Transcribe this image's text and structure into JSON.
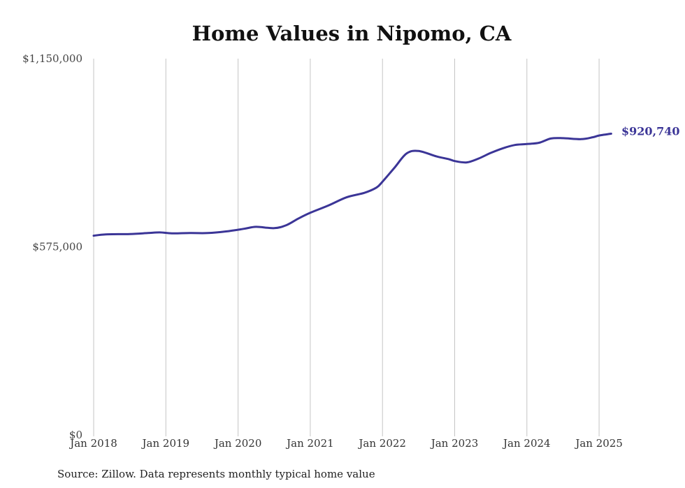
{
  "chart_data": {
    "type": "line",
    "title": "Home Values in Nipomo, CA",
    "xlabel": "",
    "ylabel": "",
    "ylim": [
      0,
      1150000
    ],
    "yticks": [
      {
        "value": 0,
        "label": "$0"
      },
      {
        "value": 575000,
        "label": "$575,000"
      },
      {
        "value": 1150000,
        "label": "$1,150,000"
      }
    ],
    "xticks": [
      {
        "value": 2018.0,
        "label": "Jan 2018"
      },
      {
        "value": 2019.0,
        "label": "Jan 2019"
      },
      {
        "value": 2020.0,
        "label": "Jan 2020"
      },
      {
        "value": 2021.0,
        "label": "Jan 2021"
      },
      {
        "value": 2022.0,
        "label": "Jan 2022"
      },
      {
        "value": 2023.0,
        "label": "Jan 2023"
      },
      {
        "value": 2024.0,
        "label": "Jan 2024"
      },
      {
        "value": 2025.0,
        "label": "Jan 2025"
      }
    ],
    "grid": "vertical",
    "series": [
      {
        "color": "#3b3597",
        "points": [
          [
            2018.0,
            609000
          ],
          [
            2018.167,
            613000
          ],
          [
            2018.5,
            614000
          ],
          [
            2018.75,
            617000
          ],
          [
            2018.917,
            619000
          ],
          [
            2019.083,
            616000
          ],
          [
            2019.333,
            617000
          ],
          [
            2019.583,
            617000
          ],
          [
            2019.833,
            622000
          ],
          [
            2020.083,
            630000
          ],
          [
            2020.25,
            636000
          ],
          [
            2020.5,
            632000
          ],
          [
            2020.667,
            641000
          ],
          [
            2020.833,
            661000
          ],
          [
            2021.0,
            679000
          ],
          [
            2021.25,
            701000
          ],
          [
            2021.5,
            726000
          ],
          [
            2021.75,
            740000
          ],
          [
            2021.917,
            756000
          ],
          [
            2022.0,
            774000
          ],
          [
            2022.167,
            817000
          ],
          [
            2022.333,
            860000
          ],
          [
            2022.5,
            868000
          ],
          [
            2022.75,
            851000
          ],
          [
            2022.917,
            843000
          ],
          [
            2023.0,
            837000
          ],
          [
            2023.167,
            833000
          ],
          [
            2023.333,
            845000
          ],
          [
            2023.5,
            862000
          ],
          [
            2023.667,
            876000
          ],
          [
            2023.833,
            886000
          ],
          [
            2024.0,
            889000
          ],
          [
            2024.167,
            893000
          ],
          [
            2024.333,
            906000
          ],
          [
            2024.5,
            907000
          ],
          [
            2024.75,
            904000
          ],
          [
            2024.917,
            910000
          ],
          [
            2025.0,
            915000
          ],
          [
            2025.167,
            920740
          ]
        ]
      }
    ],
    "end_label": "$920,740",
    "source": "Source: Zillow. Data represents monthly typical home value"
  }
}
